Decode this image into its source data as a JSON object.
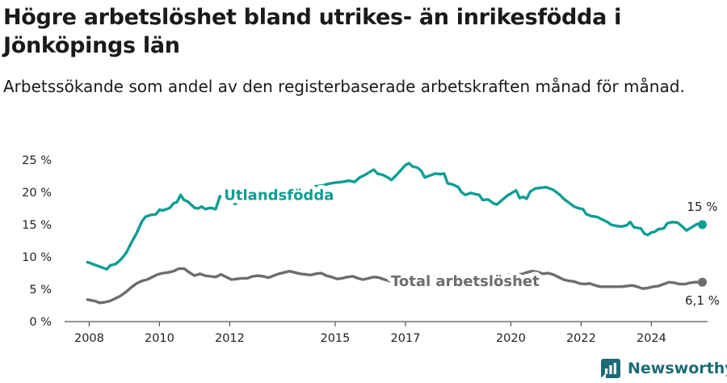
{
  "title": "Högre arbetslöshet bland utrikes- än inrikesfödda i Jönköpings län",
  "subtitle": "Arbetssökande som andel av den registerbaserade arbetskraften månad för månad.",
  "brand": {
    "name": "Newsworthy",
    "icon": "newsworthy-logo-icon"
  },
  "colors": {
    "foreign": "#0e9e93",
    "total": "#6d6d6d",
    "axis": "#555555",
    "brand": "#1d6b74"
  },
  "chart_data": {
    "type": "line",
    "x_ticks": [
      "2008",
      "2010",
      "2012",
      "2015",
      "2017",
      "2020",
      "2022",
      "2024"
    ],
    "y_ticks": [
      "0 %",
      "5 %",
      "10 %",
      "15 %",
      "20 %",
      "25 %"
    ],
    "ylim": [
      0,
      25
    ],
    "xlim": [
      2007.3,
      2025.6
    ],
    "grid": false,
    "series": [
      {
        "name": "Utlandsfödda",
        "end_label": "15 %",
        "points": [
          [
            2007.95,
            9.2
          ],
          [
            2008.15,
            8.8
          ],
          [
            2008.35,
            8.4
          ],
          [
            2008.5,
            8.1
          ],
          [
            2008.6,
            8.7
          ],
          [
            2008.75,
            8.9
          ],
          [
            2008.9,
            9.6
          ],
          [
            2009.05,
            10.6
          ],
          [
            2009.2,
            12.2
          ],
          [
            2009.35,
            13.7
          ],
          [
            2009.5,
            15.5
          ],
          [
            2009.6,
            16.2
          ],
          [
            2009.75,
            16.5
          ],
          [
            2009.9,
            16.6
          ],
          [
            2010.0,
            17.3
          ],
          [
            2010.1,
            17.2
          ],
          [
            2010.2,
            17.4
          ],
          [
            2010.3,
            17.6
          ],
          [
            2010.4,
            18.3
          ],
          [
            2010.5,
            18.5
          ],
          [
            2010.6,
            19.6
          ],
          [
            2010.7,
            18.8
          ],
          [
            2010.8,
            18.6
          ],
          [
            2010.9,
            18.1
          ],
          [
            2011.0,
            17.6
          ],
          [
            2011.1,
            17.5
          ],
          [
            2011.2,
            17.8
          ],
          [
            2011.3,
            17.4
          ],
          [
            2011.45,
            17.6
          ],
          [
            2011.6,
            17.4
          ],
          [
            2011.72,
            19.4
          ],
          [
            2011.85,
            19.1
          ],
          [
            2012.0,
            18.6
          ],
          [
            2012.15,
            18.2
          ],
          [
            2012.3,
            18.6
          ],
          [
            2012.45,
            18.5
          ],
          [
            2012.6,
            18.9
          ],
          [
            2012.7,
            19.3
          ],
          [
            2012.85,
            19.1
          ],
          [
            2013.0,
            19.5
          ],
          [
            2013.2,
            19.0
          ],
          [
            2013.4,
            19.6
          ],
          [
            2013.6,
            19.9
          ],
          [
            2013.8,
            20.0
          ],
          [
            2014.0,
            20.3
          ],
          [
            2014.2,
            20.5
          ],
          [
            2014.4,
            20.9
          ],
          [
            2014.6,
            21.0
          ],
          [
            2014.8,
            21.3
          ],
          [
            2015.0,
            21.5
          ],
          [
            2015.2,
            21.6
          ],
          [
            2015.4,
            21.8
          ],
          [
            2015.55,
            21.6
          ],
          [
            2015.7,
            22.3
          ],
          [
            2015.85,
            22.7
          ],
          [
            2016.0,
            23.2
          ],
          [
            2016.1,
            23.5
          ],
          [
            2016.2,
            22.9
          ],
          [
            2016.35,
            22.7
          ],
          [
            2016.5,
            22.3
          ],
          [
            2016.6,
            21.9
          ],
          [
            2016.75,
            22.7
          ],
          [
            2016.9,
            23.6
          ],
          [
            2017.0,
            24.2
          ],
          [
            2017.1,
            24.5
          ],
          [
            2017.2,
            24.0
          ],
          [
            2017.35,
            23.8
          ],
          [
            2017.45,
            23.3
          ],
          [
            2017.55,
            22.3
          ],
          [
            2017.7,
            22.6
          ],
          [
            2017.85,
            22.9
          ],
          [
            2018.0,
            22.8
          ],
          [
            2018.1,
            22.9
          ],
          [
            2018.2,
            21.4
          ],
          [
            2018.35,
            21.2
          ],
          [
            2018.5,
            20.8
          ],
          [
            2018.6,
            20.0
          ],
          [
            2018.7,
            19.6
          ],
          [
            2018.85,
            19.9
          ],
          [
            2019.0,
            19.7
          ],
          [
            2019.1,
            19.6
          ],
          [
            2019.2,
            18.8
          ],
          [
            2019.35,
            18.9
          ],
          [
            2019.5,
            18.3
          ],
          [
            2019.6,
            18.1
          ],
          [
            2019.75,
            18.8
          ],
          [
            2019.9,
            19.5
          ],
          [
            2020.0,
            19.8
          ],
          [
            2020.15,
            20.3
          ],
          [
            2020.25,
            19.1
          ],
          [
            2020.35,
            19.3
          ],
          [
            2020.45,
            19.0
          ],
          [
            2020.55,
            20.1
          ],
          [
            2020.7,
            20.6
          ],
          [
            2020.85,
            20.7
          ],
          [
            2021.0,
            20.8
          ],
          [
            2021.1,
            20.6
          ],
          [
            2021.2,
            20.4
          ],
          [
            2021.3,
            20.0
          ],
          [
            2021.4,
            19.6
          ],
          [
            2021.5,
            19.0
          ],
          [
            2021.65,
            18.4
          ],
          [
            2021.8,
            17.8
          ],
          [
            2021.95,
            17.5
          ],
          [
            2022.05,
            17.4
          ],
          [
            2022.15,
            16.6
          ],
          [
            2022.3,
            16.3
          ],
          [
            2022.45,
            16.2
          ],
          [
            2022.6,
            15.8
          ],
          [
            2022.75,
            15.4
          ],
          [
            2022.85,
            15.0
          ],
          [
            2023.0,
            14.8
          ],
          [
            2023.15,
            14.7
          ],
          [
            2023.3,
            14.9
          ],
          [
            2023.4,
            15.4
          ],
          [
            2023.5,
            14.6
          ],
          [
            2023.6,
            14.5
          ],
          [
            2023.7,
            14.4
          ],
          [
            2023.8,
            13.6
          ],
          [
            2023.9,
            13.4
          ],
          [
            2024.0,
            13.8
          ],
          [
            2024.1,
            13.9
          ],
          [
            2024.2,
            14.3
          ],
          [
            2024.35,
            14.4
          ],
          [
            2024.45,
            15.2
          ],
          [
            2024.6,
            15.4
          ],
          [
            2024.75,
            15.3
          ],
          [
            2024.9,
            14.6
          ],
          [
            2025.0,
            14.1
          ],
          [
            2025.15,
            14.6
          ],
          [
            2025.3,
            15.1
          ],
          [
            2025.45,
            15.0
          ]
        ]
      },
      {
        "name": "Total arbetslöshet",
        "end_label": "6,1 %",
        "points": [
          [
            2007.95,
            3.4
          ],
          [
            2008.15,
            3.2
          ],
          [
            2008.3,
            2.9
          ],
          [
            2008.45,
            3.0
          ],
          [
            2008.6,
            3.2
          ],
          [
            2008.75,
            3.6
          ],
          [
            2008.9,
            4.0
          ],
          [
            2009.05,
            4.6
          ],
          [
            2009.2,
            5.3
          ],
          [
            2009.35,
            5.9
          ],
          [
            2009.5,
            6.3
          ],
          [
            2009.65,
            6.5
          ],
          [
            2009.8,
            6.9
          ],
          [
            2009.95,
            7.3
          ],
          [
            2010.1,
            7.5
          ],
          [
            2010.25,
            7.6
          ],
          [
            2010.4,
            7.8
          ],
          [
            2010.55,
            8.2
          ],
          [
            2010.7,
            8.2
          ],
          [
            2010.85,
            7.6
          ],
          [
            2011.0,
            7.1
          ],
          [
            2011.15,
            7.4
          ],
          [
            2011.3,
            7.1
          ],
          [
            2011.45,
            7.0
          ],
          [
            2011.6,
            6.9
          ],
          [
            2011.75,
            7.3
          ],
          [
            2011.9,
            6.9
          ],
          [
            2012.05,
            6.5
          ],
          [
            2012.2,
            6.6
          ],
          [
            2012.35,
            6.7
          ],
          [
            2012.5,
            6.7
          ],
          [
            2012.65,
            7.0
          ],
          [
            2012.8,
            7.1
          ],
          [
            2012.95,
            7.0
          ],
          [
            2013.1,
            6.8
          ],
          [
            2013.25,
            7.1
          ],
          [
            2013.4,
            7.4
          ],
          [
            2013.55,
            7.6
          ],
          [
            2013.7,
            7.8
          ],
          [
            2013.85,
            7.6
          ],
          [
            2014.0,
            7.4
          ],
          [
            2014.15,
            7.3
          ],
          [
            2014.3,
            7.2
          ],
          [
            2014.45,
            7.4
          ],
          [
            2014.6,
            7.5
          ],
          [
            2014.75,
            7.1
          ],
          [
            2014.9,
            6.9
          ],
          [
            2015.05,
            6.6
          ],
          [
            2015.2,
            6.7
          ],
          [
            2015.35,
            6.9
          ],
          [
            2015.5,
            7.0
          ],
          [
            2015.65,
            6.7
          ],
          [
            2015.8,
            6.5
          ],
          [
            2015.95,
            6.7
          ],
          [
            2016.1,
            6.9
          ],
          [
            2016.25,
            6.8
          ],
          [
            2016.4,
            6.5
          ],
          [
            2016.55,
            6.3
          ],
          [
            2016.7,
            6.2
          ],
          [
            2016.85,
            6.5
          ],
          [
            2017.0,
            6.6
          ],
          [
            2017.15,
            6.6
          ],
          [
            2017.3,
            6.5
          ],
          [
            2017.45,
            6.5
          ],
          [
            2017.6,
            6.7
          ],
          [
            2017.75,
            6.9
          ],
          [
            2017.9,
            7.0
          ],
          [
            2018.05,
            7.1
          ],
          [
            2018.2,
            7.0
          ],
          [
            2018.35,
            6.8
          ],
          [
            2018.5,
            6.7
          ],
          [
            2018.65,
            6.6
          ],
          [
            2018.8,
            6.5
          ],
          [
            2018.95,
            6.5
          ],
          [
            2019.1,
            6.6
          ],
          [
            2019.25,
            6.8
          ],
          [
            2019.4,
            6.9
          ],
          [
            2019.55,
            6.8
          ],
          [
            2019.7,
            6.9
          ],
          [
            2019.85,
            7.1
          ],
          [
            2020.0,
            7.3
          ],
          [
            2020.15,
            7.5
          ],
          [
            2020.3,
            7.3
          ],
          [
            2020.45,
            7.6
          ],
          [
            2020.6,
            7.8
          ],
          [
            2020.75,
            7.7
          ],
          [
            2020.9,
            7.4
          ],
          [
            2021.05,
            7.5
          ],
          [
            2021.2,
            7.3
          ],
          [
            2021.35,
            6.9
          ],
          [
            2021.5,
            6.5
          ],
          [
            2021.65,
            6.3
          ],
          [
            2021.8,
            6.2
          ],
          [
            2021.95,
            5.9
          ],
          [
            2022.1,
            5.8
          ],
          [
            2022.25,
            5.9
          ],
          [
            2022.4,
            5.6
          ],
          [
            2022.55,
            5.4
          ],
          [
            2022.7,
            5.4
          ],
          [
            2022.85,
            5.4
          ],
          [
            2023.0,
            5.4
          ],
          [
            2023.15,
            5.4
          ],
          [
            2023.3,
            5.5
          ],
          [
            2023.45,
            5.6
          ],
          [
            2023.6,
            5.4
          ],
          [
            2023.75,
            5.1
          ],
          [
            2023.9,
            5.2
          ],
          [
            2024.05,
            5.4
          ],
          [
            2024.2,
            5.5
          ],
          [
            2024.35,
            5.8
          ],
          [
            2024.5,
            6.1
          ],
          [
            2024.65,
            6.0
          ],
          [
            2024.8,
            5.8
          ],
          [
            2024.95,
            5.8
          ],
          [
            2025.1,
            6.0
          ],
          [
            2025.25,
            6.1
          ],
          [
            2025.45,
            6.1
          ]
        ]
      }
    ]
  }
}
